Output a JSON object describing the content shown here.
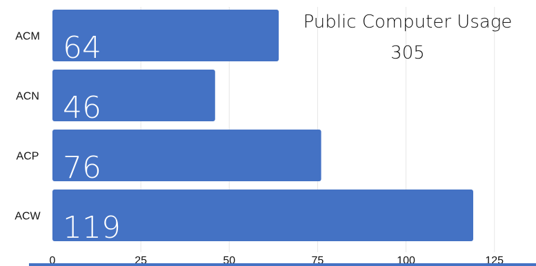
{
  "chart_data": {
    "type": "bar",
    "orientation": "horizontal",
    "title": "Public Computer Usage",
    "subtitle": "305",
    "categories": [
      "ACM",
      "ACN",
      "ACP",
      "ACW"
    ],
    "values": [
      64,
      46,
      76,
      119
    ],
    "xlim": [
      0,
      135
    ],
    "x_ticks": [
      0,
      25,
      50,
      75,
      100,
      125
    ],
    "grid": true,
    "bar_color": "#4472C4",
    "axis_line_color": "#4472C4"
  }
}
